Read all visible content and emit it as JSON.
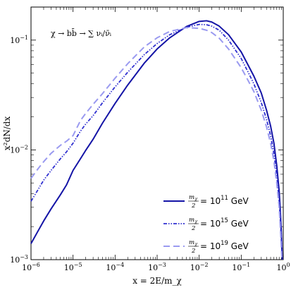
{
  "chart_data": {
    "type": "line",
    "title": "",
    "annotation": "χ → bb̄ → ∑ νᵢ/ν̄ᵢ",
    "xlabel": "x = 2E/m_χ",
    "ylabel": "x²dN/dx",
    "xscale": "log",
    "yscale": "log",
    "xlim": [
      1e-06,
      1
    ],
    "ylim": [
      0.001,
      0.2
    ],
    "x_ticks": [
      {
        "base": "10",
        "exp": "−6",
        "value": 1e-06
      },
      {
        "base": "10",
        "exp": "−5",
        "value": 1e-05
      },
      {
        "base": "10",
        "exp": "−4",
        "value": 0.0001
      },
      {
        "base": "10",
        "exp": "−3",
        "value": 0.001
      },
      {
        "base": "10",
        "exp": "−2",
        "value": 0.01
      },
      {
        "base": "10",
        "exp": "−1",
        "value": 0.1
      },
      {
        "base": "10",
        "exp": "0",
        "value": 1
      }
    ],
    "y_ticks": [
      {
        "base": "10",
        "exp": "−3",
        "value": 0.001
      },
      {
        "base": "10",
        "exp": "−2",
        "value": 0.01
      },
      {
        "base": "10",
        "exp": "−1",
        "value": 0.1
      }
    ],
    "grid": false,
    "legend_position": "bottom-right",
    "series": [
      {
        "name": "m_χ/2 = 10¹¹ GeV",
        "legend_frac_num": "m",
        "legend_frac_sub": "χ",
        "legend_frac_den": "2",
        "legend_eq": "= 10",
        "legend_exp": "11",
        "legend_unit": "GeV",
        "color": "#1414a6",
        "style": "solid",
        "points": [
          [
            1e-06,
            0.0014
          ],
          [
            1.5e-06,
            0.00185
          ],
          [
            2e-06,
            0.00225
          ],
          [
            3e-06,
            0.0029
          ],
          [
            5e-06,
            0.0039
          ],
          [
            7e-06,
            0.0048
          ],
          [
            1e-05,
            0.0065
          ],
          [
            1.5e-05,
            0.0083
          ],
          [
            2e-05,
            0.0099
          ],
          [
            3e-05,
            0.0125
          ],
          [
            5e-05,
            0.0175
          ],
          [
            0.0001,
            0.0265
          ],
          [
            0.0002,
            0.039
          ],
          [
            0.0005,
            0.062
          ],
          [
            0.001,
            0.083
          ],
          [
            0.002,
            0.105
          ],
          [
            0.005,
            0.133
          ],
          [
            0.01,
            0.148
          ],
          [
            0.015,
            0.15
          ],
          [
            0.02,
            0.146
          ],
          [
            0.03,
            0.134
          ],
          [
            0.05,
            0.112
          ],
          [
            0.1,
            0.078
          ],
          [
            0.15,
            0.058
          ],
          [
            0.2,
            0.047
          ],
          [
            0.3,
            0.033
          ],
          [
            0.4,
            0.023
          ],
          [
            0.5,
            0.0165
          ],
          [
            0.6,
            0.0115
          ],
          [
            0.7,
            0.0072
          ],
          [
            0.8,
            0.0042
          ],
          [
            0.85,
            0.0028
          ],
          [
            0.9,
            0.0018
          ],
          [
            0.93,
            0.00125
          ],
          [
            0.95,
            0.001
          ]
        ]
      },
      {
        "name": "m_χ/2 = 10¹⁵ GeV",
        "legend_frac_num": "m",
        "legend_frac_sub": "χ",
        "legend_frac_den": "2",
        "legend_eq": "= 10",
        "legend_exp": "15",
        "legend_unit": "GeV",
        "color": "#3030d0",
        "style": "dashdot",
        "points": [
          [
            1e-06,
            0.0034
          ],
          [
            1.5e-06,
            0.0044
          ],
          [
            2e-06,
            0.0053
          ],
          [
            3e-06,
            0.0065
          ],
          [
            5e-06,
            0.0083
          ],
          [
            7e-06,
            0.0096
          ],
          [
            1e-05,
            0.0115
          ],
          [
            1.5e-05,
            0.0148
          ],
          [
            2e-05,
            0.0172
          ],
          [
            3e-05,
            0.0205
          ],
          [
            5e-05,
            0.0268
          ],
          [
            0.0001,
            0.0375
          ],
          [
            0.0002,
            0.051
          ],
          [
            0.0005,
            0.074
          ],
          [
            0.001,
            0.093
          ],
          [
            0.002,
            0.112
          ],
          [
            0.005,
            0.131
          ],
          [
            0.01,
            0.139
          ],
          [
            0.015,
            0.138
          ],
          [
            0.02,
            0.134
          ],
          [
            0.03,
            0.123
          ],
          [
            0.05,
            0.1
          ],
          [
            0.1,
            0.068
          ],
          [
            0.15,
            0.05
          ],
          [
            0.2,
            0.04
          ],
          [
            0.3,
            0.027
          ],
          [
            0.4,
            0.019
          ],
          [
            0.5,
            0.0135
          ],
          [
            0.6,
            0.0092
          ],
          [
            0.7,
            0.0058
          ],
          [
            0.8,
            0.0034
          ],
          [
            0.85,
            0.0023
          ],
          [
            0.9,
            0.0015
          ],
          [
            0.93,
            0.0011
          ],
          [
            0.945,
            0.001
          ]
        ]
      },
      {
        "name": "m_χ/2 = 10¹⁹ GeV",
        "legend_frac_num": "m",
        "legend_frac_sub": "χ",
        "legend_frac_den": "2",
        "legend_eq": "= 10",
        "legend_exp": "19",
        "legend_unit": "GeV",
        "color": "#9a9af0",
        "style": "dashed",
        "points": [
          [
            1e-06,
            0.0055
          ],
          [
            1.5e-06,
            0.0068
          ],
          [
            2e-06,
            0.0078
          ],
          [
            3e-06,
            0.0093
          ],
          [
            5e-06,
            0.011
          ],
          [
            7e-06,
            0.012
          ],
          [
            1e-05,
            0.0135
          ],
          [
            1.5e-05,
            0.0185
          ],
          [
            2e-05,
            0.0215
          ],
          [
            3e-05,
            0.026
          ],
          [
            5e-05,
            0.0325
          ],
          [
            0.0001,
            0.045
          ],
          [
            0.0002,
            0.061
          ],
          [
            0.0005,
            0.087
          ],
          [
            0.001,
            0.105
          ],
          [
            0.002,
            0.12
          ],
          [
            0.005,
            0.13
          ],
          [
            0.01,
            0.128
          ],
          [
            0.015,
            0.123
          ],
          [
            0.02,
            0.117
          ],
          [
            0.03,
            0.104
          ],
          [
            0.05,
            0.083
          ],
          [
            0.1,
            0.056
          ],
          [
            0.15,
            0.042
          ],
          [
            0.2,
            0.034
          ],
          [
            0.3,
            0.023
          ],
          [
            0.4,
            0.0162
          ],
          [
            0.5,
            0.0115
          ],
          [
            0.6,
            0.0079
          ],
          [
            0.7,
            0.005
          ],
          [
            0.8,
            0.003
          ],
          [
            0.85,
            0.002
          ],
          [
            0.9,
            0.0013
          ],
          [
            0.93,
            0.001
          ]
        ]
      }
    ]
  }
}
